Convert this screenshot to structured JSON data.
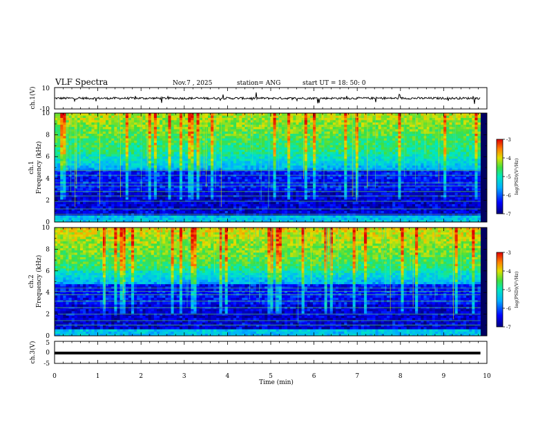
{
  "header": {
    "title": "VLF Spectra",
    "date": "Nov.7 , 2025",
    "station": "station= ANG",
    "start_time": "start UT = 18: 50: 0"
  },
  "colors": {
    "frame": "#000000",
    "spectrum_low": "#00007f",
    "spectrum_mid": "#00c8ff",
    "spectrum_green": "#3cdc3c",
    "spectrum_high": "#ffd000",
    "spectrum_peak": "#c80000"
  },
  "chart_data": [
    {
      "type": "line",
      "panel": "ch1-waveform",
      "ylabel": "ch.1(V)",
      "ylim": [
        -10,
        10
      ],
      "yticks": [
        "10",
        "-10"
      ],
      "xlim": [
        0,
        10
      ],
      "baseline_value": 0,
      "noise_amplitude": 1
    },
    {
      "type": "heatmap",
      "panel": "ch1-spectrogram",
      "ylabel": "ch.1 Frequency (kHz)",
      "ylabel_lines": [
        "ch.1",
        "Frequency (kHz)"
      ],
      "ylim": [
        0,
        10
      ],
      "yticks": [
        "0",
        "2",
        "4",
        "6",
        "8",
        "10"
      ],
      "xlim": [
        0,
        10
      ],
      "data_end_min": 9.85,
      "colorbar": {
        "label": "log(PSD)(V²/Hz)",
        "range": [
          -7,
          -3
        ],
        "ticks": [
          "-3",
          "-4",
          "-5",
          "-6",
          "-7"
        ]
      }
    },
    {
      "type": "heatmap",
      "panel": "ch2-spectrogram",
      "ylabel": "ch.2 Frequency (kHz)",
      "ylabel_lines": [
        "ch.2",
        "Frequency (kHz)"
      ],
      "ylim": [
        0,
        10
      ],
      "yticks": [
        "0",
        "2",
        "4",
        "6",
        "8",
        "10"
      ],
      "xlim": [
        0,
        10
      ],
      "data_end_min": 9.85,
      "colorbar": {
        "label": "log(PSD)(V²/Hz)",
        "range": [
          -7,
          -3
        ],
        "ticks": [
          "-3",
          "-4",
          "-5",
          "-6",
          "-7"
        ]
      }
    },
    {
      "type": "line",
      "panel": "ch3-waveform",
      "ylabel": "ch.3(V)",
      "ylim": [
        -5,
        5
      ],
      "yticks": [
        "5",
        "0",
        "-5"
      ],
      "xlim": [
        0,
        10
      ],
      "baseline_value": -0.3,
      "noise_amplitude": 0.1
    }
  ],
  "xaxis": {
    "label": "Time (min)",
    "ticks": [
      "0",
      "1",
      "2",
      "3",
      "4",
      "5",
      "6",
      "7",
      "8",
      "9",
      "10"
    ]
  }
}
